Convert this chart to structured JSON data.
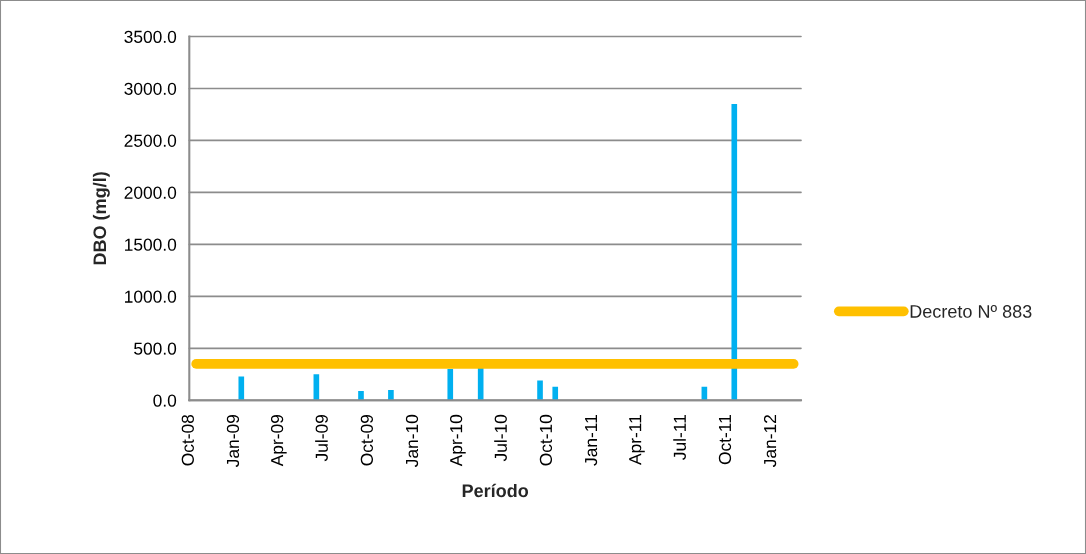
{
  "chart_data": {
    "type": "bar",
    "xlabel": "Período",
    "ylabel": "DBO (mg/l)",
    "series": [
      {
        "color": "#00b0f0",
        "x": [
          "2009-01-15",
          "2009-06-17",
          "2009-09-16",
          "2009-11-16",
          "2010-03-17",
          "2010-05-18",
          "2010-09-16",
          "2010-10-17",
          "2011-08-17",
          "2011-10-17"
        ],
        "values": [
          230,
          250,
          90,
          100,
          300,
          320,
          190,
          130,
          130,
          2850
        ]
      },
      {
        "type": "line",
        "name": "Decreto Nº 883",
        "color": "#ffc000",
        "x": [
          "2008-10-15",
          "2012-02-15"
        ],
        "values": [
          350,
          350
        ]
      }
    ],
    "xlim": [
      "2008-10-01",
      "2012-03-01"
    ],
    "xticks": [
      {
        "value": "2008-10-01",
        "label": "Oct-08"
      },
      {
        "value": "2009-01-01",
        "label": "Jan-09"
      },
      {
        "value": "2009-04-01",
        "label": "Apr-09"
      },
      {
        "value": "2009-07-01",
        "label": "Jul-09"
      },
      {
        "value": "2009-10-01",
        "label": "Oct-09"
      },
      {
        "value": "2010-01-01",
        "label": "Jan-10"
      },
      {
        "value": "2010-04-01",
        "label": "Apr-10"
      },
      {
        "value": "2010-07-01",
        "label": "Jul-10"
      },
      {
        "value": "2010-10-01",
        "label": "Oct-10"
      },
      {
        "value": "2011-01-01",
        "label": "Jan-11"
      },
      {
        "value": "2011-04-01",
        "label": "Apr-11"
      },
      {
        "value": "2011-07-01",
        "label": "Jul-11"
      },
      {
        "value": "2011-10-01",
        "label": "Oct-11"
      },
      {
        "value": "2012-01-01",
        "label": "Jan-12"
      }
    ],
    "ylim": [
      0,
      3500
    ],
    "yticks": [
      {
        "value": 0,
        "label": "0.0"
      },
      {
        "value": 500,
        "label": "500.0"
      },
      {
        "value": 1000,
        "label": "1000.0"
      },
      {
        "value": 1500,
        "label": "1500.0"
      },
      {
        "value": 2000,
        "label": "2000.0"
      },
      {
        "value": 2500,
        "label": "2500.0"
      },
      {
        "value": 3000,
        "label": "3000.0"
      },
      {
        "value": 3500,
        "label": "3500.0"
      }
    ],
    "grid": "y",
    "legend": "right",
    "line_style": "solid"
  }
}
